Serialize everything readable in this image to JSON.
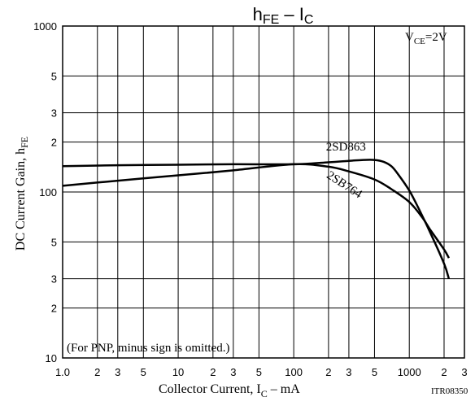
{
  "chart_data": {
    "type": "line",
    "title": {
      "main": "h",
      "main_sub": "FE",
      "sep": " – ",
      "rhs": "I",
      "rhs_sub": "C"
    },
    "xlabel": {
      "pre": "Collector Current, I",
      "sub": "C",
      "post": " – mA"
    },
    "ylabel": {
      "pre": "DC Current Gain, h",
      "sub": "FE"
    },
    "condition": {
      "pre": "V",
      "sub": "CE",
      "post": "=2V"
    },
    "note": "(For PNP, minus sign is omitted.)",
    "code": "ITR08350",
    "x_scale": "log",
    "y_scale": "log",
    "xlim": [
      1,
      3000
    ],
    "ylim": [
      10,
      1000
    ],
    "grid": true,
    "x_tick_labels": [
      {
        "v": 1,
        "t": "1.0"
      },
      {
        "v": 2,
        "t": "2"
      },
      {
        "v": 3,
        "t": "3"
      },
      {
        "v": 5,
        "t": "5"
      },
      {
        "v": 10,
        "t": "10"
      },
      {
        "v": 20,
        "t": "2"
      },
      {
        "v": 30,
        "t": "3"
      },
      {
        "v": 50,
        "t": "5"
      },
      {
        "v": 100,
        "t": "100"
      },
      {
        "v": 200,
        "t": "2"
      },
      {
        "v": 300,
        "t": "3"
      },
      {
        "v": 500,
        "t": "5"
      },
      {
        "v": 1000,
        "t": "1000"
      },
      {
        "v": 2000,
        "t": "2"
      },
      {
        "v": 3000,
        "t": "3"
      }
    ],
    "y_tick_labels": [
      {
        "v": 10,
        "t": "10"
      },
      {
        "v": 20,
        "t": "2"
      },
      {
        "v": 30,
        "t": "3"
      },
      {
        "v": 50,
        "t": "5"
      },
      {
        "v": 100,
        "t": "100"
      },
      {
        "v": 200,
        "t": "2"
      },
      {
        "v": 300,
        "t": "3"
      },
      {
        "v": 500,
        "t": "5"
      },
      {
        "v": 1000,
        "t": "1000"
      }
    ],
    "series": [
      {
        "name": "2SD863",
        "x": [
          1,
          3,
          10,
          30,
          100,
          200,
          300,
          400,
          500,
          600,
          700,
          800,
          1000,
          1200,
          1500,
          2000,
          2200
        ],
        "y": [
          143,
          145,
          146,
          147,
          147,
          151,
          154,
          156,
          156,
          152,
          143,
          128,
          102,
          80,
          58,
          37,
          30
        ]
      },
      {
        "name": "2SB764",
        "x": [
          1,
          3,
          10,
          30,
          100,
          200,
          300,
          500,
          700,
          1000,
          1300,
          1500,
          2000,
          2200
        ],
        "y": [
          109,
          117,
          126,
          135,
          147,
          142,
          133,
          119,
          104,
          87,
          70,
          60,
          45,
          40
        ]
      }
    ]
  }
}
